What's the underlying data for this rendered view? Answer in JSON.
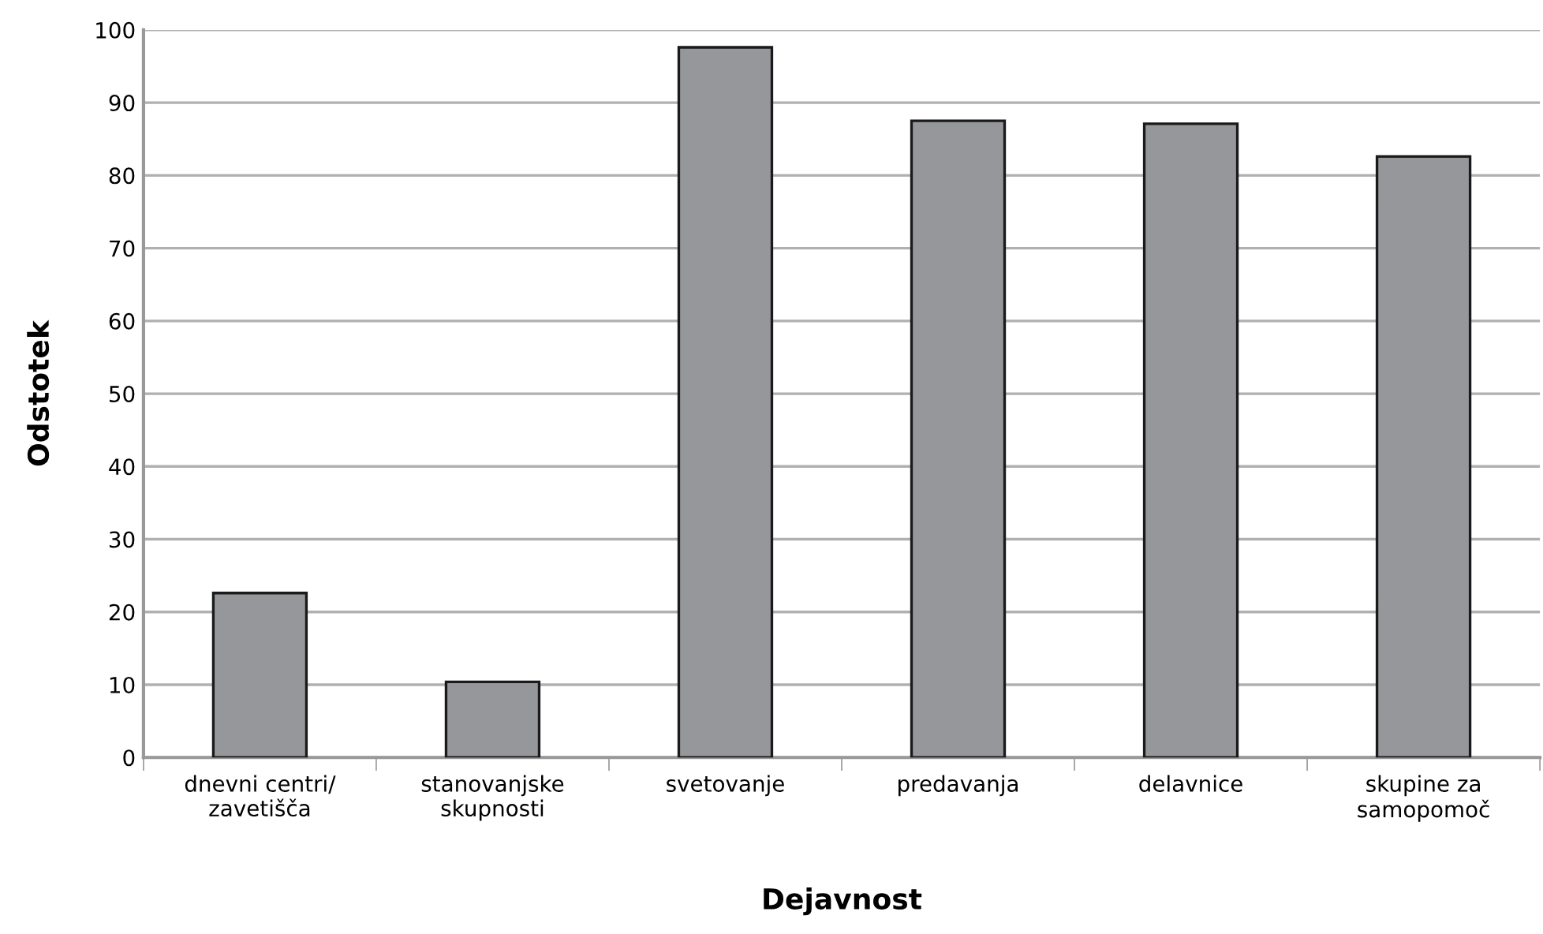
{
  "chart_data": {
    "type": "bar",
    "xlabel": "Dejavnost",
    "ylabel": "Odstotek",
    "categories": [
      "dnevni centri/\nzavetišča",
      "stanovanjske\nskupnosti",
      "svetovanje",
      "predavanja",
      "delavnice",
      "skupine za\nsamopomoč"
    ],
    "values": [
      22.6,
      10.4,
      97.6,
      87.5,
      87.1,
      82.6
    ],
    "color": "#96979b",
    "ylim": [
      0,
      100
    ],
    "yticks": [
      0,
      10,
      20,
      30,
      40,
      50,
      60,
      70,
      80,
      90,
      100
    ],
    "grid": "y",
    "legend": false
  }
}
